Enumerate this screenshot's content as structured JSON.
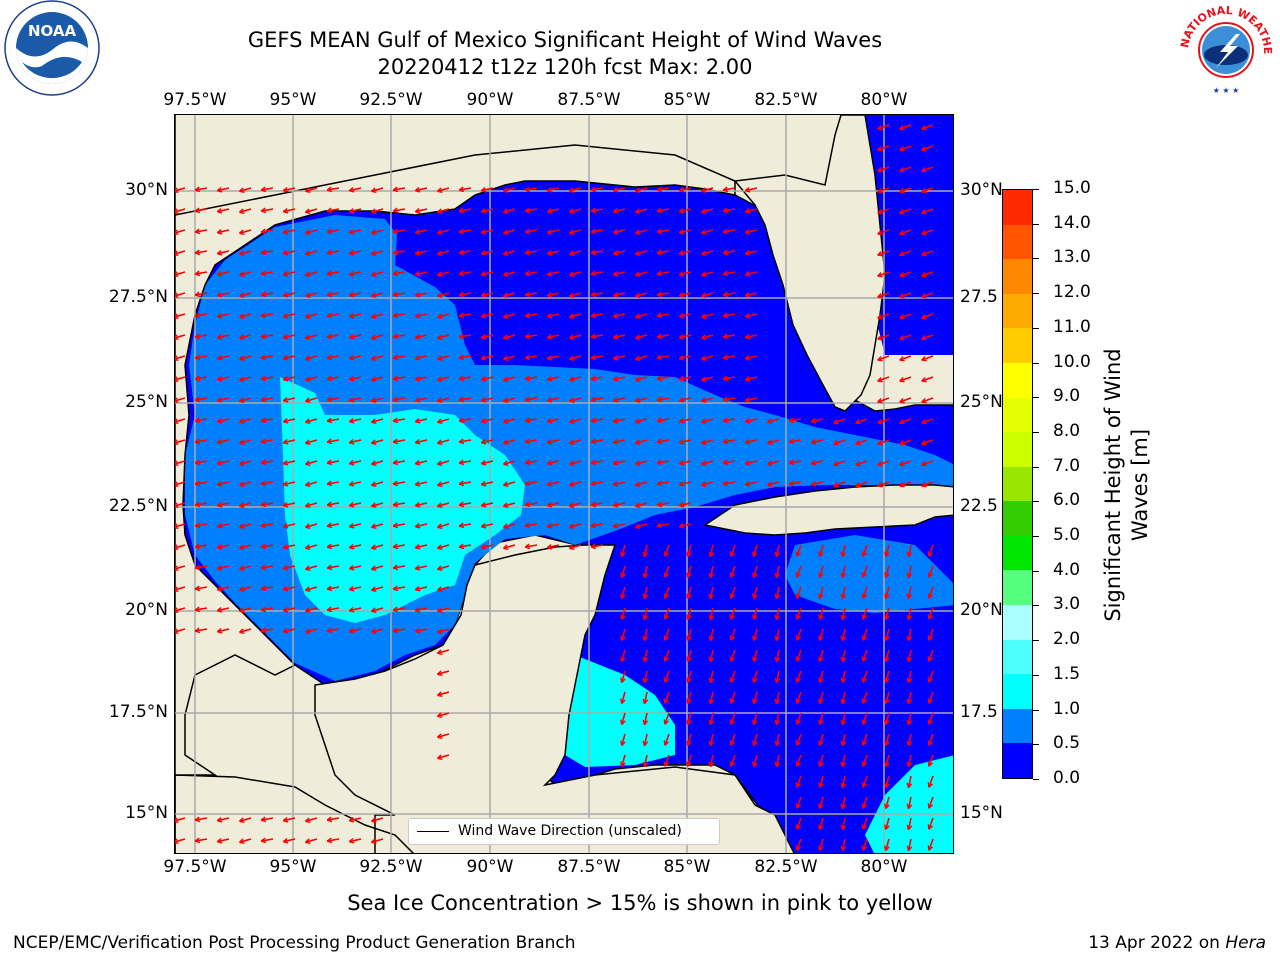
{
  "title": {
    "line1": "GEFS MEAN Gulf of Mexico Significant Height of Wind Waves",
    "line2": "20220412 t12z 120h fcst   Max: 2.00"
  },
  "logos": {
    "left": {
      "name": "noaa-logo",
      "text": "NOAA",
      "ring_text": "NATIONAL OCEANIC AND ATMOSPHERIC ADMINISTRATION · U.S. DEPARTMENT OF COMMERCE"
    },
    "right": {
      "name": "nws-logo",
      "ring_text": "NATIONAL WEATHER SERVICE"
    }
  },
  "map": {
    "lon_labels": [
      "97.5°W",
      "95°W",
      "92.5°W",
      "90°W",
      "87.5°W",
      "85°W",
      "82.5°W",
      "80°W"
    ],
    "lat_labels": [
      "30°N",
      "27.5°N",
      "25°N",
      "22.5°N",
      "20°N",
      "17.5°N",
      "15°N"
    ],
    "lat_labels_right": [
      "30°N",
      "27.5",
      "25°N",
      "22.5",
      "20°N",
      "17.5",
      "15°N"
    ],
    "colors": {
      "land": "#efedd9",
      "grid": "#aaaaaa",
      "arrow": "#ff0000",
      "coast": "#000000"
    },
    "legend_label": "Wind Wave Direction (unscaled)"
  },
  "colorbar": {
    "label": "Significant Height of Wind Waves [m]",
    "label_line1": "Significant Height of Wind",
    "label_line2": "Waves [m]",
    "ticks": [
      "15.0",
      "14.0",
      "13.0",
      "12.0",
      "11.0",
      "10.0",
      "9.0",
      "8.0",
      "7.0",
      "6.0",
      "5.0",
      "4.0",
      "3.0",
      "2.0",
      "1.5",
      "1.0",
      "0.5",
      "0.0"
    ],
    "colors": [
      "#0000ff",
      "#0080ff",
      "#00ffff",
      "#4dffff",
      "#aaffff",
      "#55ff7f",
      "#00e600",
      "#33cc00",
      "#99e600",
      "#ccff00",
      "#e6ff00",
      "#ffff00",
      "#ffcc00",
      "#ffaa00",
      "#ff8800",
      "#ff5500",
      "#ff2a00",
      "#ff0000"
    ]
  },
  "footer": {
    "note": "Sea Ice Concentration > 15% is shown in pink to yellow",
    "left": "NCEP/EMC/Verification Post Processing Product Generation Branch",
    "date": "13 Apr 2022 on ",
    "machine": "Hera"
  }
}
